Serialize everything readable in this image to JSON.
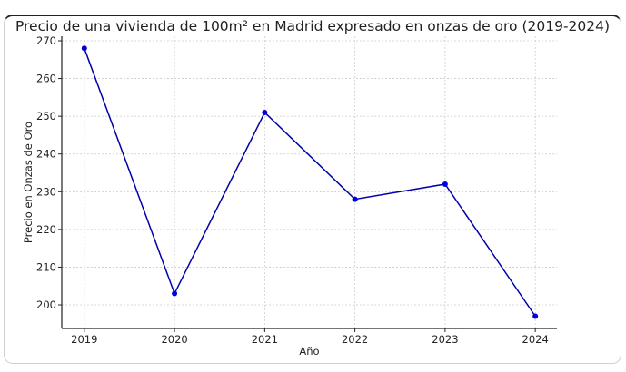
{
  "chart_data": {
    "type": "line",
    "title": "Precio de una vivienda de 100m² en Madrid expresado en onzas de oro (2019-2024)",
    "xlabel": "Año",
    "ylabel": "Precio en Onzas de Oro",
    "x": [
      2019,
      2020,
      2021,
      2022,
      2023,
      2024
    ],
    "values": [
      268,
      203,
      251,
      228,
      232,
      197
    ],
    "xticks": [
      "2019",
      "2020",
      "2021",
      "2022",
      "2023",
      "2024"
    ],
    "yticks": [
      "200",
      "210",
      "220",
      "230",
      "240",
      "250",
      "260",
      "270"
    ],
    "xlim": [
      2018.75,
      2024.24
    ],
    "ylim": [
      193.75,
      271.2
    ],
    "grid": true,
    "line_color": "#0000aa",
    "marker_color": "#0000dd"
  }
}
